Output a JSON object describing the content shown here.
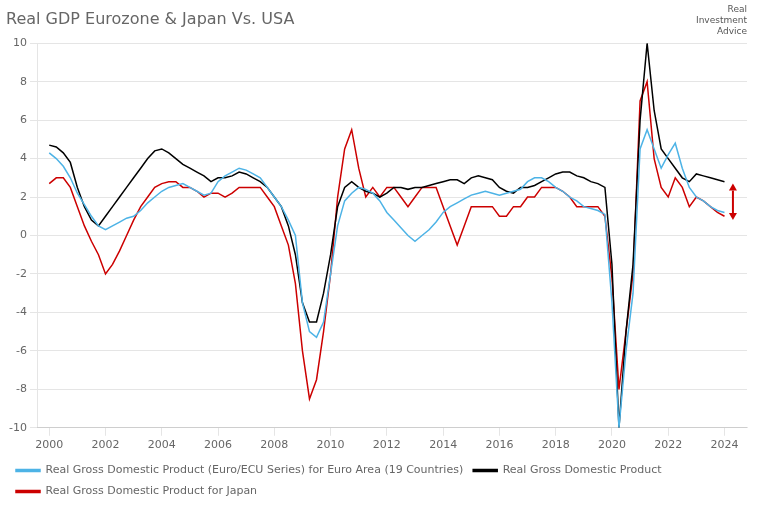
{
  "chart_data": {
    "type": "line",
    "title": "Real GDP Eurozone & Japan Vs. USA",
    "x": [
      2000,
      2000.25,
      2000.5,
      2000.75,
      2001,
      2001.25,
      2001.5,
      2001.75,
      2002,
      2002.25,
      2002.5,
      2002.75,
      2003,
      2003.25,
      2003.5,
      2003.75,
      2004,
      2004.25,
      2004.5,
      2004.75,
      2005,
      2005.25,
      2005.5,
      2005.75,
      2006,
      2006.25,
      2006.5,
      2006.75,
      2007,
      2007.25,
      2007.5,
      2007.75,
      2008,
      2008.25,
      2008.5,
      2008.75,
      2009,
      2009.25,
      2009.5,
      2009.75,
      2010,
      2010.25,
      2010.5,
      2010.75,
      2011,
      2011.25,
      2011.5,
      2011.75,
      2012,
      2012.25,
      2012.5,
      2012.75,
      2013,
      2013.25,
      2013.5,
      2013.75,
      2014,
      2014.25,
      2014.5,
      2014.75,
      2015,
      2015.25,
      2015.5,
      2015.75,
      2016,
      2016.25,
      2016.5,
      2016.75,
      2017,
      2017.25,
      2017.5,
      2017.75,
      2018,
      2018.25,
      2018.5,
      2018.75,
      2019,
      2019.25,
      2019.5,
      2019.75,
      2020,
      2020.25,
      2020.5,
      2020.75,
      2021,
      2021.25,
      2021.5,
      2021.75,
      2022,
      2022.25,
      2022.5,
      2022.75,
      2023,
      2023.25,
      2023.5,
      2023.75,
      2024
    ],
    "series": [
      {
        "name": "Real Gross Domestic Product (Euro/ECU Series) for Euro Area (19 Countries)",
        "color": "#4db3e6",
        "values": [
          4.3,
          4.0,
          3.6,
          3.0,
          2.2,
          1.6,
          1.0,
          0.5,
          0.3,
          0.5,
          0.7,
          0.9,
          1.0,
          1.3,
          1.7,
          2.0,
          2.3,
          2.5,
          2.6,
          2.7,
          2.5,
          2.3,
          2.1,
          2.2,
          2.8,
          3.1,
          3.3,
          3.5,
          3.4,
          3.2,
          3.0,
          2.5,
          2.0,
          1.5,
          0.8,
          0.0,
          -3.5,
          -5.0,
          -5.3,
          -4.5,
          -2.0,
          0.5,
          1.8,
          2.2,
          2.5,
          2.4,
          2.2,
          1.8,
          1.2,
          0.8,
          0.4,
          0.0,
          -0.3,
          0.0,
          0.3,
          0.7,
          1.2,
          1.5,
          1.7,
          1.9,
          2.1,
          2.2,
          2.3,
          2.2,
          2.1,
          2.2,
          2.3,
          2.4,
          2.8,
          3.0,
          3.0,
          2.8,
          2.5,
          2.3,
          2.0,
          1.8,
          1.5,
          1.4,
          1.3,
          1.1,
          -3.5,
          -10.0,
          -6.0,
          -3.0,
          4.5,
          5.5,
          4.5,
          3.5,
          4.2,
          4.8,
          3.5,
          2.5,
          2.0,
          1.8,
          1.5,
          1.3,
          1.2
        ]
      },
      {
        "name": "Real Gross Domestic Product",
        "color": "#000000",
        "values": [
          4.7,
          4.6,
          4.3,
          3.8,
          2.5,
          1.5,
          0.8,
          0.5,
          1.0,
          1.5,
          2.0,
          2.5,
          3.0,
          3.5,
          4.0,
          4.4,
          4.5,
          4.3,
          4.0,
          3.7,
          3.5,
          3.3,
          3.1,
          2.8,
          3.0,
          3.0,
          3.1,
          3.3,
          3.2,
          3.0,
          2.8,
          2.5,
          2.0,
          1.5,
          0.5,
          -1.0,
          -3.5,
          -4.5,
          -4.5,
          -3.0,
          -1.0,
          1.5,
          2.5,
          2.8,
          2.5,
          2.3,
          2.2,
          2.0,
          2.2,
          2.5,
          2.5,
          2.4,
          2.5,
          2.5,
          2.6,
          2.7,
          2.8,
          2.9,
          2.9,
          2.7,
          3.0,
          3.1,
          3.0,
          2.9,
          2.5,
          2.3,
          2.2,
          2.5,
          2.5,
          2.6,
          2.8,
          3.0,
          3.2,
          3.3,
          3.3,
          3.1,
          3.0,
          2.8,
          2.7,
          2.5,
          -1.5,
          -10.0,
          -5.0,
          -1.5,
          6.0,
          10.0,
          6.5,
          4.5,
          4.0,
          3.5,
          3.0,
          2.8,
          3.2,
          3.1,
          3.0,
          2.9,
          2.8
        ]
      },
      {
        "name": "Real Gross Domestic Product for Japan",
        "color": "#cc0000",
        "values": [
          2.7,
          3.0,
          3.0,
          2.5,
          1.5,
          0.5,
          -0.3,
          -1.0,
          -2.0,
          -1.5,
          -0.8,
          0.0,
          0.8,
          1.5,
          2.0,
          2.5,
          2.7,
          2.8,
          2.8,
          2.5,
          2.5,
          2.3,
          2.0,
          2.2,
          2.2,
          2.0,
          2.2,
          2.5,
          2.5,
          2.5,
          2.5,
          2.0,
          1.5,
          0.5,
          -0.5,
          -2.5,
          -6.0,
          -8.5,
          -7.5,
          -5.0,
          -2.0,
          2.0,
          4.5,
          5.5,
          3.5,
          2.0,
          2.5,
          2.0,
          2.5,
          2.5,
          2.0,
          1.5,
          2.0,
          2.5,
          2.5,
          2.5,
          1.5,
          0.5,
          -0.5,
          0.5,
          1.5,
          1.5,
          1.5,
          1.5,
          1.0,
          1.0,
          1.5,
          1.5,
          2.0,
          2.0,
          2.5,
          2.5,
          2.5,
          2.3,
          2.0,
          1.5,
          1.5,
          1.5,
          1.5,
          1.0,
          -2.2,
          -8.0,
          -5.0,
          -2.0,
          7.0,
          8.0,
          4.0,
          2.5,
          2.0,
          3.0,
          2.5,
          1.5,
          2.0,
          1.8,
          1.5,
          1.2,
          1.0
        ]
      }
    ],
    "xlim": [
      1999.6,
      2024.8
    ],
    "xticks": [
      2000,
      2002,
      2004,
      2006,
      2008,
      2010,
      2012,
      2014,
      2016,
      2018,
      2020,
      2022,
      2024
    ],
    "ylim": [
      -10,
      10
    ],
    "yticks": [
      -10,
      -8,
      -6,
      -4,
      -2,
      0,
      2,
      4,
      6,
      8,
      10
    ],
    "grid": "y",
    "legend": "bottom",
    "annotations": [
      {
        "type": "arrow",
        "x": 2024.3,
        "y_from": 2.7,
        "y_to": 0.8,
        "color": "#cc0000"
      },
      {
        "text": "Real\nInvestment\nAdvice"
      }
    ]
  }
}
